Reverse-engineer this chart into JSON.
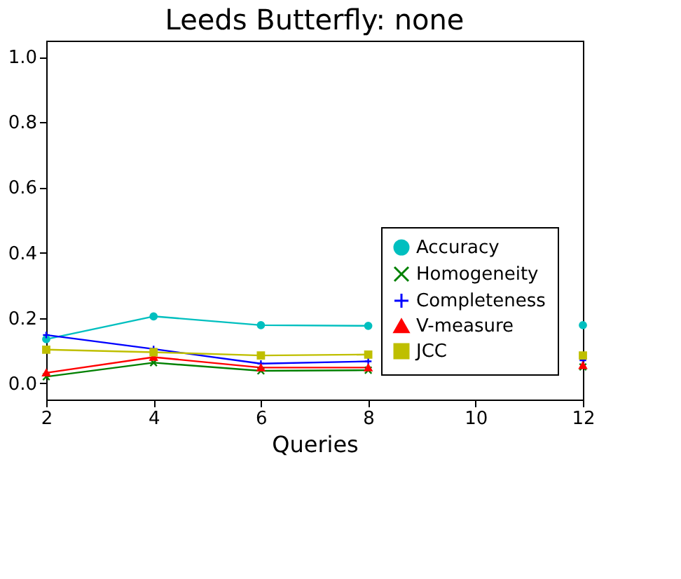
{
  "chart_data": {
    "type": "line",
    "title": "Leeds Butterfly: none",
    "xlabel": "Queries",
    "x": [
      2,
      4,
      6,
      8,
      10,
      12
    ],
    "xlim": [
      2,
      12
    ],
    "xticks": [
      2,
      4,
      6,
      8,
      10,
      12
    ],
    "ylim": [
      -0.05,
      1.05
    ],
    "yticks": [
      {
        "value": 0,
        "label": "0.0"
      },
      0.2,
      0.4,
      0.6,
      0.8,
      {
        "value": 1,
        "label": "1.0"
      }
    ],
    "grid": false,
    "legend": "bottom right",
    "series": [
      {
        "name": "Accuracy",
        "color": "#00bfbf",
        "marker": "circle",
        "values": [
          0.135,
          0.205,
          0.178,
          0.176,
          null,
          0.178
        ]
      },
      {
        "name": "Homogeneity",
        "color": "#008000",
        "marker": "x",
        "values": [
          0.02,
          0.063,
          0.038,
          0.04,
          null,
          0.05
        ]
      },
      {
        "name": "Completeness",
        "color": "#0000ff",
        "marker": "cross",
        "values": [
          0.148,
          0.105,
          0.06,
          0.067,
          null,
          0.07
        ]
      },
      {
        "name": "V-measure",
        "color": "#ff0000",
        "marker": "triangle",
        "values": [
          0.032,
          0.08,
          0.048,
          0.048,
          null,
          0.055
        ]
      },
      {
        "name": "JCC",
        "color": "#bfbf00",
        "marker": "square",
        "values": [
          0.103,
          0.095,
          0.085,
          0.088,
          null,
          0.085
        ]
      }
    ]
  }
}
